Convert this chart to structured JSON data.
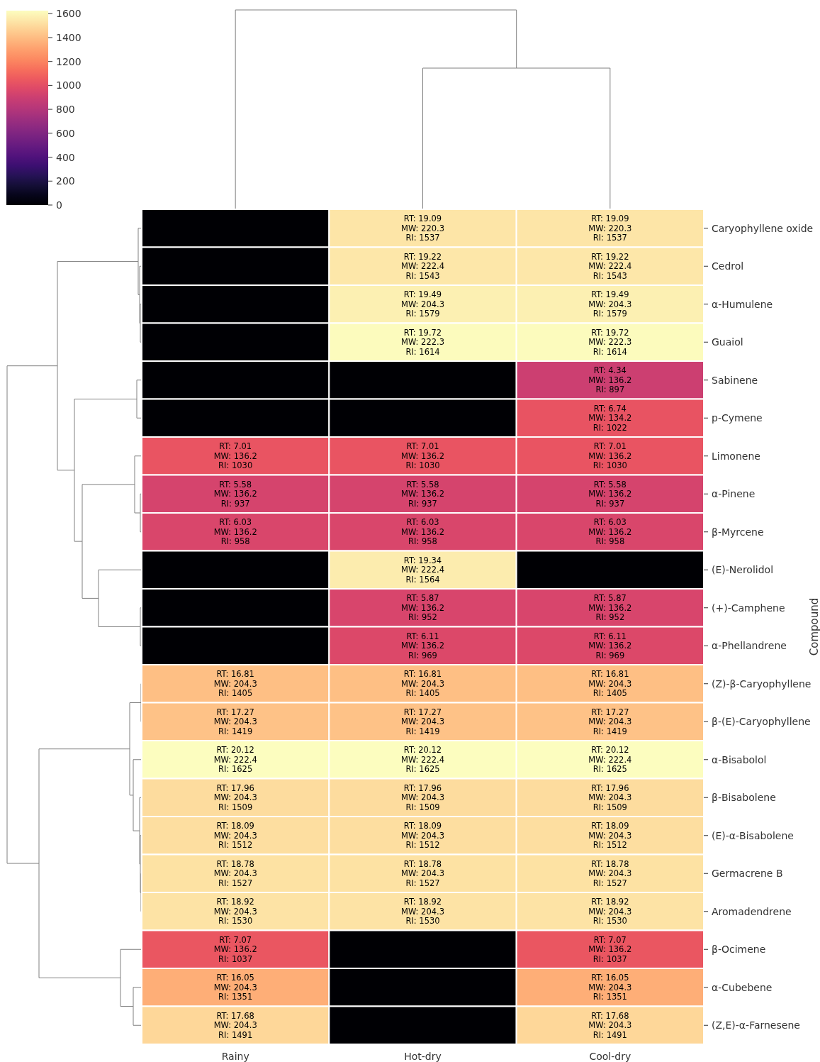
{
  "chart_data": {
    "type": "heatmap",
    "ylabel": "Compound",
    "categories": [
      "Rainy",
      "Hot-dry",
      "Cool-dry"
    ],
    "y_categories": [
      "Caryophyllene oxide",
      "Cedrol",
      "α-Humulene",
      "Guaiol",
      "Sabinene",
      "p-Cymene",
      "Limonene",
      "α-Pinene",
      "β-Myrcene",
      "(E)-Nerolidol",
      "(+)-Camphene",
      "α-Phellandrene",
      "(Z)-β-Caryophyllene",
      "β-(E)-Caryophyllene",
      "α-Bisabolol",
      "β-Bisabolene",
      "(E)-α-Bisabolene",
      "Germacrene B",
      "Aromadendrene",
      "β-Ocimene",
      "α-Cubebene",
      "(Z,E)-α-Farnesene"
    ],
    "cells": [
      [
        0,
        1537,
        1537
      ],
      [
        0,
        1543,
        1543
      ],
      [
        0,
        1579,
        1579
      ],
      [
        0,
        1614,
        1614
      ],
      [
        0,
        0,
        897
      ],
      [
        0,
        0,
        1022
      ],
      [
        1030,
        1030,
        1030
      ],
      [
        937,
        937,
        937
      ],
      [
        958,
        958,
        958
      ],
      [
        0,
        1564,
        0
      ],
      [
        0,
        952,
        952
      ],
      [
        0,
        969,
        969
      ],
      [
        1405,
        1405,
        1405
      ],
      [
        1419,
        1419,
        1419
      ],
      [
        1625,
        1625,
        1625
      ],
      [
        1509,
        1509,
        1509
      ],
      [
        1512,
        1512,
        1512
      ],
      [
        1527,
        1527,
        1527
      ],
      [
        1530,
        1530,
        1530
      ],
      [
        1037,
        0,
        1037
      ],
      [
        1351,
        0,
        1351
      ],
      [
        1491,
        0,
        1491
      ]
    ],
    "cell_labels": [
      [
        null,
        "RT: 19.09\nMW: 220.3\nRI: 1537",
        "RT: 19.09\nMW: 220.3\nRI: 1537"
      ],
      [
        null,
        "RT: 19.22\nMW: 222.4\nRI: 1543",
        "RT: 19.22\nMW: 222.4\nRI: 1543"
      ],
      [
        null,
        "RT: 19.49\nMW: 204.3\nRI: 1579",
        "RT: 19.49\nMW: 204.3\nRI: 1579"
      ],
      [
        null,
        "RT: 19.72\nMW: 222.3\nRI: 1614",
        "RT: 19.72\nMW: 222.3\nRI: 1614"
      ],
      [
        null,
        null,
        "RT: 4.34\nMW: 136.2\nRI: 897"
      ],
      [
        null,
        null,
        "RT: 6.74\nMW: 134.2\nRI: 1022"
      ],
      [
        "RT: 7.01\nMW: 136.2\nRI: 1030",
        "RT: 7.01\nMW: 136.2\nRI: 1030",
        "RT: 7.01\nMW: 136.2\nRI: 1030"
      ],
      [
        "RT: 5.58\nMW: 136.2\nRI: 937",
        "RT: 5.58\nMW: 136.2\nRI: 937",
        "RT: 5.58\nMW: 136.2\nRI: 937"
      ],
      [
        "RT: 6.03\nMW: 136.2\nRI: 958",
        "RT: 6.03\nMW: 136.2\nRI: 958",
        "RT: 6.03\nMW: 136.2\nRI: 958"
      ],
      [
        null,
        "RT: 19.34\nMW: 222.4\nRI: 1564",
        null
      ],
      [
        null,
        "RT: 5.87\nMW: 136.2\nRI: 952",
        "RT: 5.87\nMW: 136.2\nRI: 952"
      ],
      [
        null,
        "RT: 6.11\nMW: 136.2\nRI: 969",
        "RT: 6.11\nMW: 136.2\nRI: 969"
      ],
      [
        "RT: 16.81\nMW: 204.3\nRI: 1405",
        "RT: 16.81\nMW: 204.3\nRI: 1405",
        "RT: 16.81\nMW: 204.3\nRI: 1405"
      ],
      [
        "RT: 17.27\nMW: 204.3\nRI: 1419",
        "RT: 17.27\nMW: 204.3\nRI: 1419",
        "RT: 17.27\nMW: 204.3\nRI: 1419"
      ],
      [
        "RT: 20.12\nMW: 222.4\nRI: 1625",
        "RT: 20.12\nMW: 222.4\nRI: 1625",
        "RT: 20.12\nMW: 222.4\nRI: 1625"
      ],
      [
        "RT: 17.96\nMW: 204.3\nRI: 1509",
        "RT: 17.96\nMW: 204.3\nRI: 1509",
        "RT: 17.96\nMW: 204.3\nRI: 1509"
      ],
      [
        "RT: 18.09\nMW: 204.3\nRI: 1512",
        "RT: 18.09\nMW: 204.3\nRI: 1512",
        "RT: 18.09\nMW: 204.3\nRI: 1512"
      ],
      [
        "RT: 18.78\nMW: 204.3\nRI: 1527",
        "RT: 18.78\nMW: 204.3\nRI: 1527",
        "RT: 18.78\nMW: 204.3\nRI: 1527"
      ],
      [
        "RT: 18.92\nMW: 204.3\nRI: 1530",
        "RT: 18.92\nMW: 204.3\nRI: 1530",
        "RT: 18.92\nMW: 204.3\nRI: 1530"
      ],
      [
        "RT: 7.07\nMW: 136.2\nRI: 1037",
        null,
        "RT: 7.07\nMW: 136.2\nRI: 1037"
      ],
      [
        "RT: 16.05\nMW: 204.3\nRI: 1351",
        null,
        "RT: 16.05\nMW: 204.3\nRI: 1351"
      ],
      [
        "RT: 17.68\nMW: 204.3\nRI: 1491",
        null,
        "RT: 17.68\nMW: 204.3\nRI: 1491"
      ]
    ],
    "clim": [
      0,
      1625
    ],
    "cticks": [
      0,
      200,
      400,
      600,
      800,
      1000,
      1200,
      1400,
      1600
    ]
  }
}
